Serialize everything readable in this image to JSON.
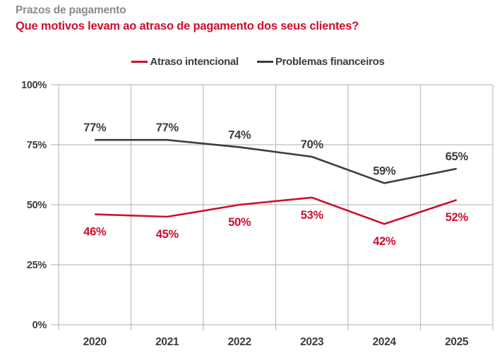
{
  "header": {
    "kicker": "Prazos de pagamento",
    "title": "Que motivos levam ao atraso de pagamento dos seus clientes?"
  },
  "colors": {
    "accent_red": "#ce0e2d",
    "dark": "#3d3d3d",
    "kicker_gray": "#8c8c8c",
    "grid": "#bfbfbf"
  },
  "chart_data": {
    "type": "line",
    "title": "Que motivos levam ao atraso de pagamento dos seus clientes?",
    "categories": [
      "2020",
      "2021",
      "2022",
      "2023",
      "2024",
      "2025"
    ],
    "series": [
      {
        "name": "Atraso intencional",
        "color": "#ce0e2d",
        "values": [
          46,
          45,
          50,
          53,
          42,
          52
        ],
        "label_position": "below"
      },
      {
        "name": "Problemas financeiros",
        "color": "#3d3d3d",
        "values": [
          77,
          77,
          74,
          70,
          59,
          65
        ],
        "label_position": "above"
      }
    ],
    "y_ticks": [
      "0%",
      "25%",
      "50%",
      "75%",
      "100%"
    ],
    "y_tick_values": [
      0,
      25,
      50,
      75,
      100
    ],
    "ylim": [
      0,
      100
    ],
    "grid": true,
    "legend_position": "top",
    "value_suffix": "%",
    "xlabel": "",
    "ylabel": ""
  }
}
